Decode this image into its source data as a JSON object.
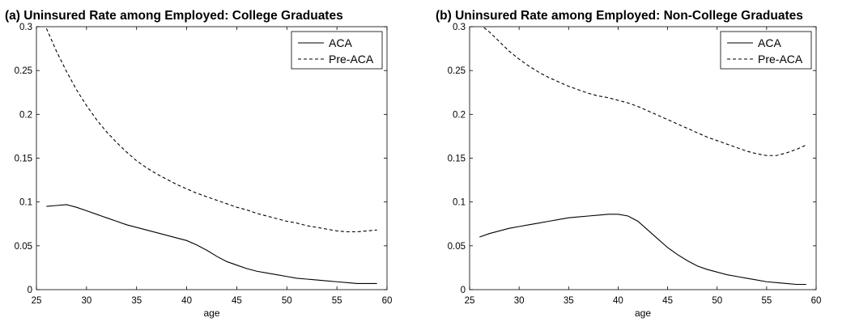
{
  "chart_data": [
    {
      "type": "line",
      "title": "(a) Uninsured Rate among Employed: College Graduates",
      "xlabel": "age",
      "ylabel": "",
      "xlim": [
        25,
        60
      ],
      "ylim": [
        0,
        0.3
      ],
      "xticks": [
        "25",
        "30",
        "35",
        "40",
        "45",
        "50",
        "55",
        "60"
      ],
      "yticks": [
        "0",
        "0.05",
        "0.1",
        "0.15",
        "0.2",
        "0.25",
        "0.3"
      ],
      "legend_position": "top-right",
      "x": [
        26,
        27,
        28,
        29,
        30,
        31,
        32,
        33,
        34,
        35,
        36,
        37,
        38,
        39,
        40,
        41,
        42,
        43,
        44,
        45,
        46,
        47,
        48,
        49,
        50,
        51,
        52,
        53,
        54,
        55,
        56,
        57,
        58,
        59
      ],
      "series": [
        {
          "name": "ACA",
          "style": "solid",
          "values": [
            0.095,
            0.096,
            0.097,
            0.094,
            0.09,
            0.086,
            0.082,
            0.078,
            0.074,
            0.071,
            0.068,
            0.065,
            0.062,
            0.059,
            0.056,
            0.051,
            0.045,
            0.038,
            0.032,
            0.028,
            0.024,
            0.021,
            0.019,
            0.017,
            0.015,
            0.013,
            0.012,
            0.011,
            0.01,
            0.009,
            0.008,
            0.007,
            0.007,
            0.007
          ]
        },
        {
          "name": "Pre-ACA",
          "style": "dashed",
          "values": [
            0.298,
            0.272,
            0.249,
            0.228,
            0.21,
            0.194,
            0.18,
            0.168,
            0.157,
            0.147,
            0.139,
            0.132,
            0.126,
            0.12,
            0.115,
            0.11,
            0.106,
            0.102,
            0.098,
            0.094,
            0.091,
            0.087,
            0.084,
            0.081,
            0.078,
            0.076,
            0.073,
            0.071,
            0.069,
            0.067,
            0.066,
            0.066,
            0.067,
            0.068
          ]
        }
      ]
    },
    {
      "type": "line",
      "title": "(b) Uninsured Rate among Employed: Non-College Graduates",
      "xlabel": "age",
      "ylabel": "",
      "xlim": [
        25,
        60
      ],
      "ylim": [
        0,
        0.3
      ],
      "xticks": [
        "25",
        "30",
        "35",
        "40",
        "45",
        "50",
        "55",
        "60"
      ],
      "yticks": [
        "0",
        "0.05",
        "0.1",
        "0.15",
        "0.2",
        "0.25",
        "0.3"
      ],
      "legend_position": "top-right",
      "x": [
        26,
        27,
        28,
        29,
        30,
        31,
        32,
        33,
        34,
        35,
        36,
        37,
        38,
        39,
        40,
        41,
        42,
        43,
        44,
        45,
        46,
        47,
        48,
        49,
        50,
        51,
        52,
        53,
        54,
        55,
        56,
        57,
        58,
        59
      ],
      "series": [
        {
          "name": "ACA",
          "style": "solid",
          "values": [
            0.06,
            0.064,
            0.067,
            0.07,
            0.072,
            0.074,
            0.076,
            0.078,
            0.08,
            0.082,
            0.083,
            0.084,
            0.085,
            0.086,
            0.086,
            0.084,
            0.078,
            0.068,
            0.058,
            0.048,
            0.04,
            0.033,
            0.027,
            0.023,
            0.02,
            0.017,
            0.015,
            0.013,
            0.011,
            0.009,
            0.008,
            0.007,
            0.006,
            0.006
          ]
        },
        {
          "name": "Pre-ACA",
          "style": "dashed",
          "values": [
            0.303,
            0.294,
            0.283,
            0.272,
            0.263,
            0.255,
            0.248,
            0.242,
            0.237,
            0.232,
            0.228,
            0.224,
            0.221,
            0.219,
            0.216,
            0.213,
            0.209,
            0.204,
            0.199,
            0.194,
            0.189,
            0.184,
            0.179,
            0.174,
            0.17,
            0.166,
            0.162,
            0.158,
            0.155,
            0.153,
            0.153,
            0.156,
            0.16,
            0.165
          ]
        }
      ]
    }
  ]
}
